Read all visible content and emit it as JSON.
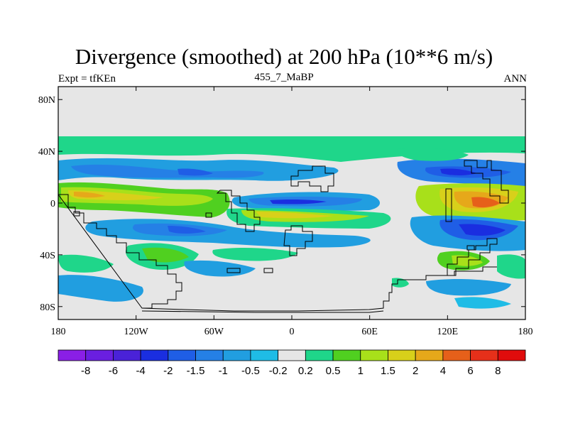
{
  "title": "Divergence (smoothed) at 200 hPa (10**6 m/s)",
  "subtitle_left": "Expt = tfKEn",
  "subtitle_center": "455_7_MaBP",
  "subtitle_right": "ANN",
  "map": {
    "lon_range": [
      -180,
      180
    ],
    "lat_range": [
      -90,
      90
    ],
    "background": "#e6e6e6",
    "lat_ticks": [
      {
        "value": 80,
        "label": "80N"
      },
      {
        "value": 40,
        "label": "40N"
      },
      {
        "value": 0,
        "label": "0"
      },
      {
        "value": -40,
        "label": "40S"
      },
      {
        "value": -80,
        "label": "80S"
      }
    ],
    "lon_ticks": [
      {
        "value": -180,
        "label": "180"
      },
      {
        "value": -120,
        "label": "120W"
      },
      {
        "value": -60,
        "label": "60W"
      },
      {
        "value": 0,
        "label": "0"
      },
      {
        "value": 60,
        "label": "60E"
      },
      {
        "value": 120,
        "label": "120E"
      },
      {
        "value": 180,
        "label": "180"
      }
    ]
  },
  "colorbar": {
    "colors": [
      "#8a1fe6",
      "#6a1fe0",
      "#4a22d8",
      "#1a2ee0",
      "#1f5ee6",
      "#2580e6",
      "#219ee0",
      "#1fbce6",
      "#e6e6e6",
      "#1fd68a",
      "#50d020",
      "#a8e01a",
      "#d8d01a",
      "#e6a81a",
      "#e6601a",
      "#e6301a",
      "#e00c0c"
    ],
    "labels": [
      "-8",
      "-6",
      "-4",
      "-2",
      "-1.5",
      "-1",
      "-0.5",
      "-0.2",
      "0.2",
      "0.5",
      "1",
      "1.5",
      "2",
      "4",
      "6",
      "8"
    ]
  },
  "legend_colors": {
    "neg_weak": "#1fbce6",
    "neg_mid": "#2580e6",
    "neg_strong": "#1f5ee6",
    "neg_max": "#1a2ee0",
    "pos_weak": "#1fd68a",
    "pos_mid": "#50d020",
    "pos_strong": "#a8e01a",
    "pos_high": "#d8d01a",
    "pos_vhigh": "#e6a81a",
    "pos_max": "#e6601a"
  }
}
